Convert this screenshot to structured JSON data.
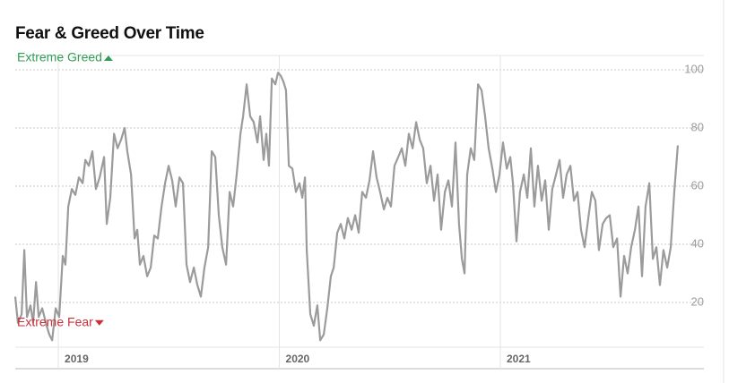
{
  "chart_data": {
    "type": "line",
    "title": "Fear & Greed Over Time",
    "annotations": [
      {
        "text": "Extreme Greed",
        "color": "#2f9e50",
        "marker": "up",
        "y": 104
      },
      {
        "text": "Extreme Fear",
        "color": "#c9303a",
        "marker": "down",
        "y": 13
      }
    ],
    "color": "#9b9b9b",
    "xlim": [
      2018.805,
      2021.921
    ],
    "ylim": [
      5,
      105
    ],
    "xticks": [
      2019,
      2020,
      2021
    ],
    "yticks": [
      20,
      40,
      60,
      80,
      100
    ],
    "grid": true,
    "x": [
      2018.805,
      2018.817,
      2018.834,
      2018.846,
      2018.858,
      2018.874,
      2018.886,
      2018.899,
      2018.911,
      2018.927,
      2018.947,
      2018.959,
      2018.972,
      2018.988,
      2019.004,
      2019.02,
      2019.032,
      2019.045,
      2019.061,
      2019.077,
      2019.093,
      2019.11,
      2019.122,
      2019.138,
      2019.154,
      2019.17,
      2019.187,
      2019.207,
      2019.219,
      2019.235,
      2019.252,
      2019.268,
      2019.284,
      2019.3,
      2019.312,
      2019.329,
      2019.345,
      2019.357,
      2019.369,
      2019.385,
      2019.402,
      2019.418,
      2019.434,
      2019.45,
      2019.467,
      2019.483,
      2019.499,
      2019.515,
      2019.531,
      2019.548,
      2019.564,
      2019.58,
      2019.596,
      2019.613,
      2019.629,
      2019.645,
      2019.661,
      2019.678,
      2019.694,
      2019.71,
      2019.726,
      2019.742,
      2019.759,
      2019.775,
      2019.791,
      2019.807,
      2019.824,
      2019.836,
      2019.852,
      2019.868,
      2019.884,
      2019.901,
      2019.913,
      2019.929,
      2019.941,
      2019.953,
      2019.966,
      2019.982,
      2019.994,
      2020.006,
      2020.018,
      2020.03,
      2020.043,
      2020.059,
      2020.075,
      2020.091,
      2020.104,
      2020.116,
      2020.124,
      2020.14,
      2020.156,
      2020.172,
      2020.185,
      2020.201,
      2020.217,
      2020.233,
      2020.246,
      2020.262,
      2020.278,
      2020.294,
      2020.31,
      2020.327,
      2020.343,
      2020.359,
      2020.375,
      2020.392,
      2020.408,
      2020.424,
      2020.44,
      2020.456,
      2020.473,
      2020.489,
      2020.505,
      2020.521,
      2020.538,
      2020.554,
      2020.57,
      2020.586,
      2020.603,
      2020.619,
      2020.635,
      2020.651,
      2020.667,
      2020.684,
      2020.7,
      2020.716,
      2020.732,
      2020.749,
      2020.765,
      2020.781,
      2020.797,
      2020.813,
      2020.826,
      2020.838,
      2020.85,
      2020.866,
      2020.882,
      2020.899,
      2020.915,
      2020.931,
      2020.947,
      2020.964,
      2020.98,
      2020.996,
      2021.012,
      2021.029,
      2021.045,
      2021.057,
      2021.073,
      2021.089,
      2021.106,
      2021.122,
      2021.138,
      2021.154,
      2021.17,
      2021.187,
      2021.203,
      2021.219,
      2021.235,
      2021.252,
      2021.268,
      2021.284,
      2021.3,
      2021.317,
      2021.333,
      2021.349,
      2021.365,
      2021.381,
      2021.398,
      2021.414,
      2021.43,
      2021.446,
      2021.463,
      2021.479,
      2021.495,
      2021.511,
      2021.528,
      2021.544,
      2021.56,
      2021.576,
      2021.592,
      2021.609,
      2021.625,
      2021.641,
      2021.657,
      2021.674,
      2021.69,
      2021.706,
      2021.722,
      2021.738,
      2021.755,
      2021.771,
      2021.787,
      2021.803
    ],
    "values": [
      22,
      13,
      16,
      38,
      15,
      19,
      13,
      27,
      15,
      18,
      12,
      9,
      7,
      18,
      15,
      36,
      33,
      53,
      59,
      57,
      63,
      61,
      69,
      67,
      72,
      59,
      63,
      70,
      47,
      56,
      78,
      73,
      76,
      80,
      72,
      64,
      42,
      45,
      33,
      36,
      29,
      32,
      43,
      42,
      53,
      61,
      67,
      62,
      53,
      63,
      61,
      33,
      27,
      32,
      26,
      22,
      32,
      39,
      72,
      70,
      50,
      39,
      33,
      58,
      53,
      64,
      78,
      84,
      95,
      84,
      82,
      75,
      84,
      69,
      78,
      67,
      97,
      95,
      99,
      98,
      96,
      93,
      67,
      66,
      58,
      61,
      56,
      63,
      38,
      16,
      12,
      19,
      7,
      9,
      18,
      29,
      32,
      44,
      47,
      42,
      49,
      45,
      50,
      44,
      58,
      56,
      62,
      72,
      63,
      58,
      52,
      56,
      53,
      67,
      70,
      73,
      67,
      78,
      73,
      82,
      76,
      73,
      61,
      67,
      55,
      64,
      45,
      58,
      62,
      53,
      75,
      47,
      35,
      30,
      64,
      73,
      69,
      95,
      93,
      84,
      73,
      66,
      58,
      64,
      75,
      66,
      70,
      61,
      41,
      58,
      64,
      56,
      73,
      53,
      67,
      55,
      62,
      45,
      59,
      64,
      69,
      56,
      64,
      67,
      55,
      58,
      45,
      39,
      49,
      58,
      55,
      38,
      47,
      49,
      50,
      39,
      42,
      22,
      36,
      30,
      39,
      45,
      53,
      29,
      53,
      61,
      35,
      39,
      26,
      38,
      32,
      39,
      58,
      74
    ]
  }
}
